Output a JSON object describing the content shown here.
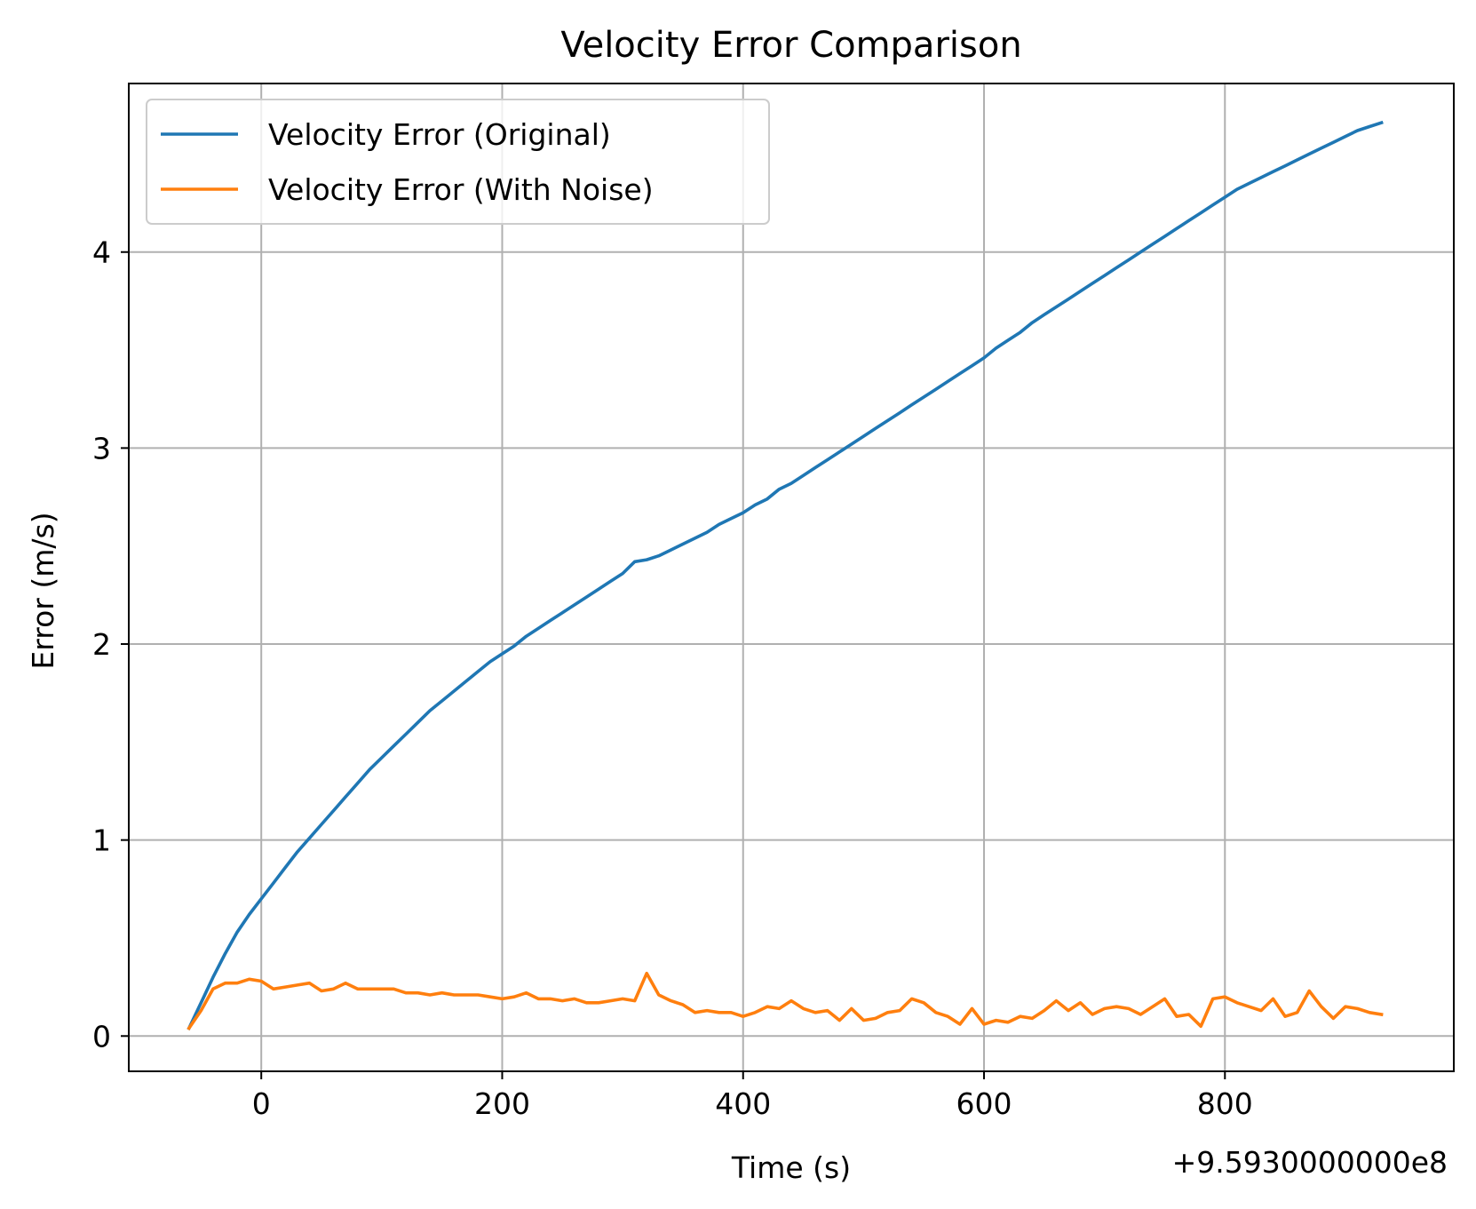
{
  "chart_data": {
    "type": "line",
    "title": "Velocity Error Comparison",
    "xlabel": "Time (s)",
    "ylabel": "Error (m/s)",
    "x_offset_label": "+9.5930000000e8",
    "xlim": [
      -110,
      990
    ],
    "ylim": [
      -0.18,
      4.86
    ],
    "xticks": [
      0,
      200,
      400,
      600,
      800
    ],
    "xtick_labels": [
      "0",
      "200",
      "400",
      "600",
      "800"
    ],
    "yticks": [
      0,
      1,
      2,
      3,
      4
    ],
    "ytick_labels": [
      "0",
      "1",
      "2",
      "3",
      "4"
    ],
    "grid": true,
    "legend_position": "upper-left",
    "x": [
      -60,
      -50,
      -40,
      -30,
      -20,
      -10,
      0,
      10,
      20,
      30,
      40,
      50,
      60,
      70,
      80,
      90,
      100,
      110,
      120,
      130,
      140,
      150,
      160,
      170,
      180,
      190,
      200,
      210,
      220,
      230,
      240,
      250,
      260,
      270,
      280,
      290,
      300,
      310,
      320,
      330,
      340,
      350,
      360,
      370,
      380,
      390,
      400,
      410,
      420,
      430,
      440,
      450,
      460,
      470,
      480,
      490,
      500,
      510,
      520,
      530,
      540,
      550,
      560,
      570,
      580,
      590,
      600,
      610,
      620,
      630,
      640,
      650,
      660,
      670,
      680,
      690,
      700,
      710,
      720,
      730,
      740,
      750,
      760,
      770,
      780,
      790,
      800,
      810,
      820,
      830,
      840,
      850,
      860,
      870,
      880,
      890,
      900,
      910,
      920,
      930
    ],
    "series": [
      {
        "name": "Velocity Error (Original)",
        "color": "#1f77b4",
        "values": [
          0.04,
          0.17,
          0.3,
          0.42,
          0.53,
          0.62,
          0.7,
          0.78,
          0.86,
          0.94,
          1.01,
          1.08,
          1.15,
          1.22,
          1.29,
          1.36,
          1.42,
          1.48,
          1.54,
          1.6,
          1.66,
          1.71,
          1.76,
          1.81,
          1.86,
          1.91,
          1.95,
          1.99,
          2.04,
          2.08,
          2.12,
          2.16,
          2.2,
          2.24,
          2.28,
          2.32,
          2.36,
          2.42,
          2.43,
          2.45,
          2.48,
          2.51,
          2.54,
          2.57,
          2.61,
          2.64,
          2.67,
          2.71,
          2.74,
          2.79,
          2.82,
          2.86,
          2.9,
          2.94,
          2.98,
          3.02,
          3.06,
          3.1,
          3.14,
          3.18,
          3.22,
          3.26,
          3.3,
          3.34,
          3.38,
          3.42,
          3.46,
          3.51,
          3.55,
          3.59,
          3.64,
          3.68,
          3.72,
          3.76,
          3.8,
          3.84,
          3.88,
          3.92,
          3.96,
          4.0,
          4.04,
          4.08,
          4.12,
          4.16,
          4.2,
          4.24,
          4.28,
          4.32,
          4.35,
          4.38,
          4.41,
          4.44,
          4.47,
          4.5,
          4.53,
          4.56,
          4.59,
          4.62,
          4.64,
          4.66
        ]
      },
      {
        "name": "Velocity Error (With Noise)",
        "color": "#ff7f0e",
        "values": [
          0.04,
          0.13,
          0.24,
          0.27,
          0.27,
          0.29,
          0.28,
          0.24,
          0.25,
          0.26,
          0.27,
          0.23,
          0.24,
          0.27,
          0.24,
          0.24,
          0.24,
          0.24,
          0.22,
          0.22,
          0.21,
          0.22,
          0.21,
          0.21,
          0.21,
          0.2,
          0.19,
          0.2,
          0.22,
          0.19,
          0.19,
          0.18,
          0.19,
          0.17,
          0.17,
          0.18,
          0.19,
          0.18,
          0.32,
          0.21,
          0.18,
          0.16,
          0.12,
          0.13,
          0.12,
          0.12,
          0.1,
          0.12,
          0.15,
          0.14,
          0.18,
          0.14,
          0.12,
          0.13,
          0.08,
          0.14,
          0.08,
          0.09,
          0.12,
          0.13,
          0.19,
          0.17,
          0.12,
          0.1,
          0.06,
          0.14,
          0.06,
          0.08,
          0.07,
          0.1,
          0.09,
          0.13,
          0.18,
          0.13,
          0.17,
          0.11,
          0.14,
          0.15,
          0.14,
          0.11,
          0.15,
          0.19,
          0.1,
          0.11,
          0.05,
          0.19,
          0.2,
          0.17,
          0.15,
          0.13,
          0.19,
          0.1,
          0.12,
          0.23,
          0.15,
          0.09,
          0.15,
          0.14,
          0.12,
          0.11
        ]
      }
    ]
  }
}
